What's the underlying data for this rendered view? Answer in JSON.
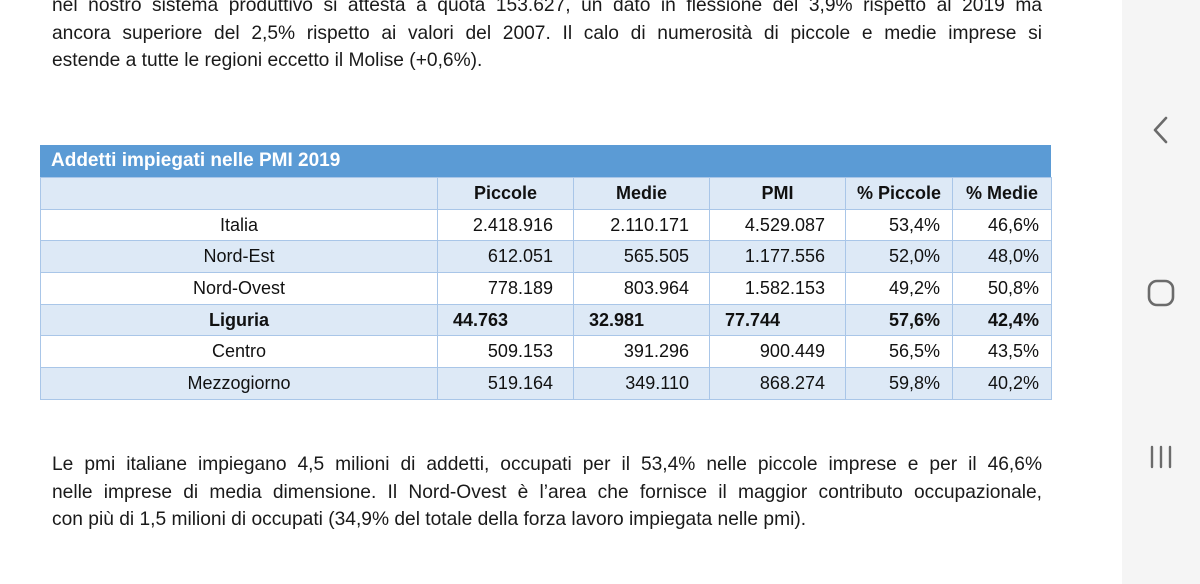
{
  "paragraphs": {
    "top": [
      "nel nostro sistema produttivo si attesta a quota 153.627, un dato in flessione del 3,9% rispetto al 2019 ma",
      "ancora superiore del 2,5% rispetto ai valori del 2007. Il calo di numerosità di piccole e medie imprese si",
      "estende a tutte le regioni eccetto il Molise (+0,6%)."
    ],
    "bottom": [
      "Le pmi italiane impiegano 4,5 milioni di addetti, occupati per il 53,4% nelle piccole imprese e per il 46,6%",
      "nelle imprese di media dimensione. Il Nord-Ovest è l’area che fornisce il maggior contributo occupazionale,",
      "con più di 1,5 milioni di occupati (34,9% del totale della forza lavoro impiegata nelle pmi)."
    ]
  },
  "table": {
    "title": "Addetti impiegati nelle PMI 2019",
    "headers": [
      "",
      "Piccole",
      "Medie",
      "PMI",
      "% Piccole",
      "% Medie"
    ],
    "rows": [
      [
        "Italia",
        "2.418.916",
        "2.110.171",
        "4.529.087",
        "53,4%",
        "46,6%"
      ],
      [
        "Nord-Est",
        "612.051",
        "565.505",
        "1.177.556",
        "52,0%",
        "48,0%"
      ],
      [
        "Nord-Ovest",
        "778.189",
        "803.964",
        "1.582.153",
        "49,2%",
        "50,8%"
      ],
      [
        "Liguria",
        "44.763",
        "32.981",
        "77.744",
        "57,6%",
        "42,4%"
      ],
      [
        "Centro",
        "509.153",
        "391.296",
        "900.449",
        "56,5%",
        "43,5%"
      ],
      [
        "Mezzogiorno",
        "519.164",
        "349.110",
        "868.274",
        "59,8%",
        "40,2%"
      ]
    ],
    "highlight_color": "#5b9bd5",
    "band_color": "#dde9f6"
  },
  "nav": {
    "buttons": [
      "back-icon",
      "home-icon",
      "recent-apps-icon"
    ]
  }
}
